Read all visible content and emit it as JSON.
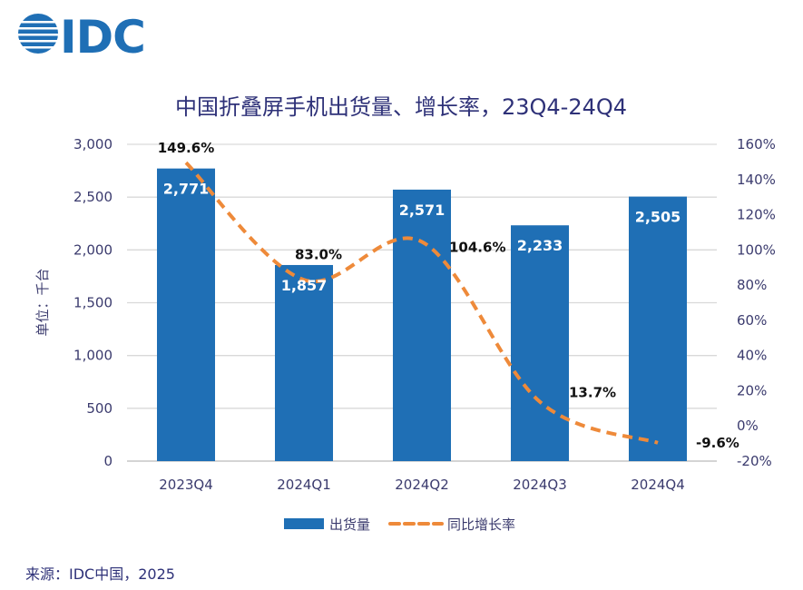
{
  "logo": {
    "text": "IDC",
    "color": "#1f6fb5"
  },
  "chart_data": {
    "type": "bar+line",
    "title": "中国折叠屏手机出货量、增长率，23Q4-24Q4",
    "ylabel": "单位：千台",
    "categories": [
      "2023Q4",
      "2024Q1",
      "2024Q2",
      "2024Q3",
      "2024Q4"
    ],
    "series": [
      {
        "name": "出货量",
        "type": "bar",
        "axis": "left",
        "color": "#1f6fb5",
        "values": [
          2771,
          1857,
          2571,
          2233,
          2505
        ],
        "labels": [
          "2,771",
          "1,857",
          "2,571",
          "2,233",
          "2,505"
        ]
      },
      {
        "name": "同比增长率",
        "type": "line",
        "axis": "right",
        "color": "#ee8a3a",
        "style": "dashed",
        "values": [
          149.6,
          83.0,
          104.6,
          13.7,
          -9.6
        ],
        "labels": [
          "149.6%",
          "83.0%",
          "104.6%",
          "13.7%",
          "-9.6%"
        ]
      }
    ],
    "ylim_left": [
      0,
      3000
    ],
    "yticks_left": [
      "0",
      "500",
      "1,000",
      "1,500",
      "2,000",
      "2,500",
      "3,000"
    ],
    "ylim_right": [
      -20,
      160
    ],
    "yticks_right": [
      "-20%",
      "0%",
      "20%",
      "40%",
      "60%",
      "80%",
      "100%",
      "120%",
      "140%",
      "160%"
    ],
    "grid": true,
    "legend": "bottom"
  },
  "source": "来源：IDC中国，2025"
}
